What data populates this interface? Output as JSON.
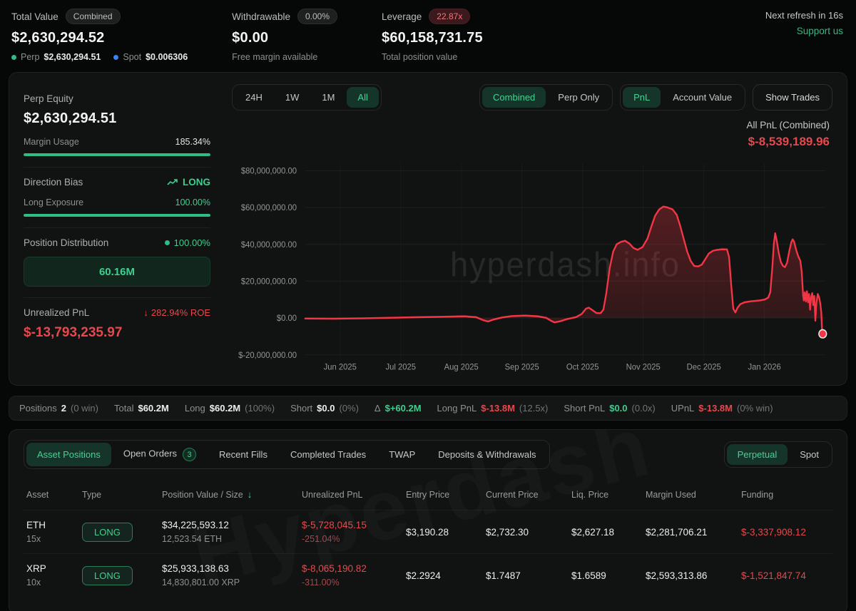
{
  "header": {
    "total_value": {
      "label": "Total Value",
      "badge": "Combined",
      "value": "$2,630,294.52",
      "perp_label": "Perp",
      "perp_value": "$2,630,294.51",
      "spot_label": "Spot",
      "spot_value": "$0.006306"
    },
    "withdrawable": {
      "label": "Withdrawable",
      "badge": "0.00%",
      "value": "$0.00",
      "sub": "Free margin available"
    },
    "leverage": {
      "label": "Leverage",
      "badge": "22.87x",
      "value": "$60,158,731.75",
      "sub": "Total position value"
    },
    "refresh": "Next refresh in 16s",
    "support": "Support us"
  },
  "stats": {
    "perp_equity_label": "Perp Equity",
    "perp_equity": "$2,630,294.51",
    "margin_usage_label": "Margin Usage",
    "margin_usage": "185.34%",
    "margin_usage_fill_pct": 100,
    "direction_bias_label": "Direction Bias",
    "direction_bias": "LONG",
    "long_exposure_label": "Long Exposure",
    "long_exposure": "100.00%",
    "long_exposure_fill_pct": 100,
    "position_distribution_label": "Position Distribution",
    "position_distribution_pct": "100.00%",
    "position_distribution_value": "60.16M",
    "unrealized_pnl_label": "Unrealized PnL",
    "roe": "282.94% ROE",
    "unrealized_pnl": "$-13,793,235.97"
  },
  "chart": {
    "ranges": [
      "24H",
      "1W",
      "1M",
      "All"
    ],
    "active_range": "All",
    "mode_options": [
      "Combined",
      "Perp Only"
    ],
    "active_mode": "Combined",
    "view_options": [
      "PnL",
      "Account Value"
    ],
    "active_view": "PnL",
    "show_trades": "Show Trades",
    "pnl_label": "All PnL (Combined)",
    "pnl_value": "$-8,539,189.96",
    "watermark": "hyperdash.info"
  },
  "chart_data": {
    "type": "area",
    "title": "All PnL (Combined)",
    "current_value": "$-8,539,189.96",
    "line_color": "#f23645",
    "y_ticks": [
      "$80,000,000.00",
      "$60,000,000.00",
      "$40,000,000.00",
      "$20,000,000.00",
      "$0.00",
      "$-20,000,000.00"
    ],
    "y_tick_values_musd": [
      80,
      60,
      40,
      20,
      0,
      -20
    ],
    "x_ticks": [
      "Jun 2025",
      "Jul 2025",
      "Aug 2025",
      "Sep 2025",
      "Oct 2025",
      "Nov 2025",
      "Dec 2025",
      "Jan 2026"
    ],
    "x_unit": "plot px 0-745",
    "y_unit": "USD millions",
    "series": [
      {
        "name": "All PnL (Combined)",
        "points": [
          [
            0,
            -0.3
          ],
          [
            40,
            -0.4
          ],
          [
            80,
            -0.2
          ],
          [
            120,
            0.1
          ],
          [
            160,
            0.4
          ],
          [
            200,
            0.7
          ],
          [
            228,
            0.9
          ],
          [
            245,
            0.4
          ],
          [
            255,
            -1.2
          ],
          [
            262,
            -1.9
          ],
          [
            270,
            -0.8
          ],
          [
            282,
            0.3
          ],
          [
            296,
            1.0
          ],
          [
            315,
            1.3
          ],
          [
            333,
            0.9
          ],
          [
            345,
            0.1
          ],
          [
            352,
            -1.5
          ],
          [
            357,
            -2.4
          ],
          [
            365,
            -1.8
          ],
          [
            375,
            -0.6
          ],
          [
            388,
            0.5
          ],
          [
            396,
            2.2
          ],
          [
            402,
            5.0
          ],
          [
            406,
            5.6
          ],
          [
            411,
            4.3
          ],
          [
            417,
            2.7
          ],
          [
            423,
            2.6
          ],
          [
            427,
            4.5
          ],
          [
            431,
            13
          ],
          [
            436,
            27
          ],
          [
            441,
            36
          ],
          [
            446,
            40
          ],
          [
            452,
            41.3
          ],
          [
            458,
            41.9
          ],
          [
            464,
            40.5
          ],
          [
            470,
            38
          ],
          [
            476,
            37
          ],
          [
            483,
            38.5
          ],
          [
            490,
            43
          ],
          [
            496,
            50
          ],
          [
            501,
            55.5
          ],
          [
            507,
            59
          ],
          [
            513,
            60.5
          ],
          [
            519,
            60
          ],
          [
            526,
            59
          ],
          [
            532,
            56
          ],
          [
            537,
            50
          ],
          [
            542,
            43
          ],
          [
            547,
            36
          ],
          [
            552,
            31
          ],
          [
            557,
            28.2
          ],
          [
            563,
            28
          ],
          [
            568,
            29
          ],
          [
            573,
            32
          ],
          [
            578,
            35
          ],
          [
            584,
            36.5
          ],
          [
            590,
            37
          ],
          [
            597,
            37.3
          ],
          [
            604,
            37.2
          ],
          [
            607,
            33
          ],
          [
            610,
            18
          ],
          [
            613,
            5
          ],
          [
            616,
            3
          ],
          [
            619,
            5.5
          ],
          [
            623,
            7.5
          ],
          [
            629,
            8.5
          ],
          [
            637,
            9
          ],
          [
            645,
            9.3
          ],
          [
            652,
            9.6
          ],
          [
            658,
            10
          ],
          [
            663,
            11
          ],
          [
            666,
            14
          ],
          [
            669,
            28
          ],
          [
            671,
            40
          ],
          [
            673,
            46
          ],
          [
            675,
            42.5
          ],
          [
            678,
            35.5
          ],
          [
            681,
            30.5
          ],
          [
            684,
            28.3
          ],
          [
            687,
            27.6
          ],
          [
            690,
            30
          ],
          [
            693,
            36
          ],
          [
            696,
            41
          ],
          [
            698,
            42.7
          ],
          [
            700,
            41.5
          ],
          [
            703,
            37
          ],
          [
            706,
            33.5
          ],
          [
            709,
            31
          ],
          [
            711,
            25
          ],
          [
            713,
            12
          ],
          [
            714,
            9.5
          ],
          [
            715.5,
            14
          ],
          [
            717,
            9
          ],
          [
            718.5,
            14.5
          ],
          [
            720,
            8.5
          ],
          [
            721.5,
            13
          ],
          [
            723,
            4.5
          ],
          [
            724.5,
            11.5
          ],
          [
            726,
            13.5
          ],
          [
            727.5,
            7
          ],
          [
            729,
            12
          ],
          [
            730.5,
            -1.5
          ],
          [
            732,
            8
          ],
          [
            734,
            13
          ],
          [
            736,
            11
          ],
          [
            737.5,
            8
          ],
          [
            739,
            3
          ],
          [
            740,
            -6
          ],
          [
            741,
            -8.6
          ]
        ]
      }
    ]
  },
  "positions_bar": {
    "items": [
      {
        "label": "Positions",
        "value": "2",
        "extra": "(0 win)",
        "color": "white"
      },
      {
        "label": "Total",
        "value": "$60.2M",
        "extra": "",
        "color": "white"
      },
      {
        "label": "Long",
        "value": "$60.2M",
        "extra": "(100%)",
        "color": "white"
      },
      {
        "label": "Short",
        "value": "$0.0",
        "extra": "(0%)",
        "color": "white"
      },
      {
        "label": "Δ",
        "value": "$+60.2M",
        "extra": "",
        "color": "green"
      },
      {
        "label": "Long PnL",
        "value": "$-13.8M",
        "extra": "(12.5x)",
        "color": "red"
      },
      {
        "label": "Short PnL",
        "value": "$0.0",
        "extra": "(0.0x)",
        "color": "green"
      },
      {
        "label": "UPnL",
        "value": "$-13.8M",
        "extra": "(0% win)",
        "color": "red"
      }
    ]
  },
  "tabs": {
    "items": [
      {
        "label": "Asset Positions",
        "badge": ""
      },
      {
        "label": "Open Orders",
        "badge": "3"
      },
      {
        "label": "Recent Fills",
        "badge": ""
      },
      {
        "label": "Completed Trades",
        "badge": ""
      },
      {
        "label": "TWAP",
        "badge": ""
      },
      {
        "label": "Deposits & Withdrawals",
        "badge": ""
      }
    ],
    "active": "Asset Positions",
    "side_items": [
      "Perpetual",
      "Spot"
    ],
    "side_active": "Perpetual"
  },
  "table": {
    "columns": [
      "Asset",
      "Type",
      "Position Value / Size",
      "Unrealized PnL",
      "Entry Price",
      "Current Price",
      "Liq. Price",
      "Margin Used",
      "Funding"
    ],
    "sort_column": "Position Value / Size",
    "rows": [
      {
        "asset": "ETH",
        "leverage": "15x",
        "type": "LONG",
        "value": "$34,225,593.12",
        "size": "12,523.54 ETH",
        "upnl": "$-5,728,045.15",
        "upnl_pct": "-251.04%",
        "entry": "$3,190.28",
        "current": "$2,732.30",
        "liq": "$2,627.18",
        "margin": "$2,281,706.21",
        "funding": "$-3,337,908.12"
      },
      {
        "asset": "XRP",
        "leverage": "10x",
        "type": "LONG",
        "value": "$25,933,138.63",
        "size": "14,830,801.00 XRP",
        "upnl": "$-8,065,190.82",
        "upnl_pct": "-311.00%",
        "entry": "$2.2924",
        "current": "$1.7487",
        "liq": "$1.6589",
        "margin": "$2,593,313.86",
        "funding": "$-1,521,847.74"
      }
    ],
    "bottom_watermark": "Hyperdash"
  }
}
